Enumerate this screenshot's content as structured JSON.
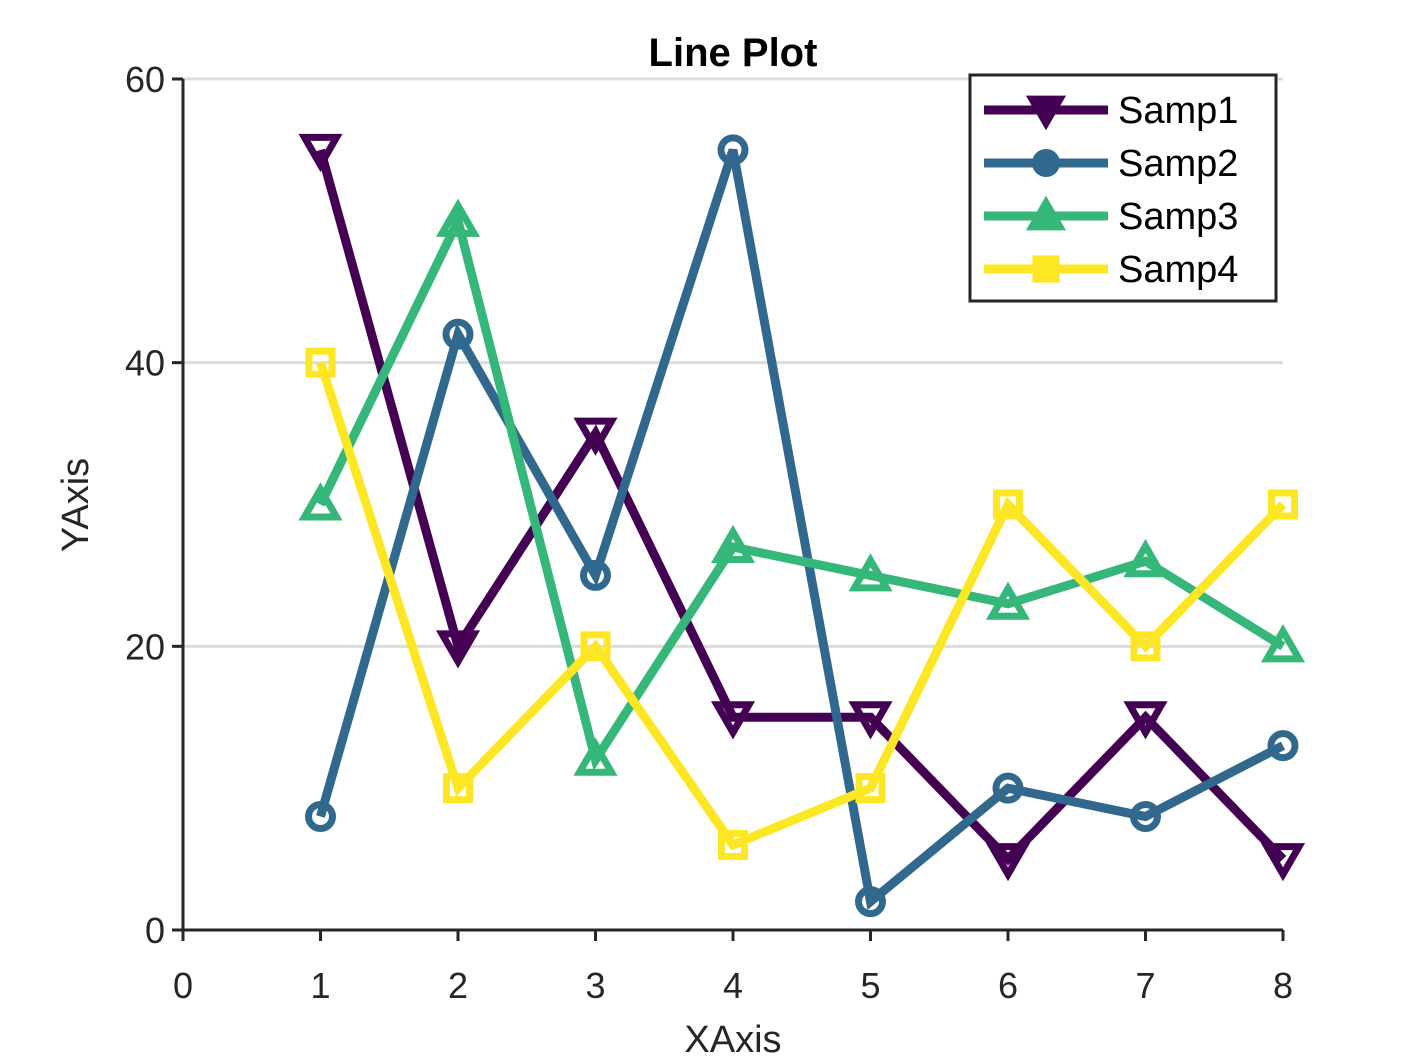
{
  "chart_data": {
    "type": "line",
    "title": "Line Plot",
    "xlabel": "XAxis",
    "ylabel": "YAxis",
    "xlim": [
      0,
      8
    ],
    "ylim": [
      0,
      60
    ],
    "xticks": [
      0,
      1,
      2,
      3,
      4,
      5,
      6,
      7,
      8
    ],
    "yticks": [
      0,
      20,
      40,
      60
    ],
    "grid": "horizontal",
    "legend_position": "top-right",
    "x": [
      1,
      2,
      3,
      4,
      5,
      6,
      7,
      8
    ],
    "series": [
      {
        "name": "Samp1",
        "marker": "triangle-down",
        "color": "#440154",
        "values": [
          55,
          20,
          35,
          15,
          15,
          5,
          15,
          5
        ]
      },
      {
        "name": "Samp2",
        "marker": "circle",
        "color": "#31688e",
        "values": [
          8,
          42,
          25,
          55,
          2,
          10,
          8,
          13
        ]
      },
      {
        "name": "Samp3",
        "marker": "triangle-up",
        "color": "#35b779",
        "values": [
          30,
          50,
          12,
          27,
          25,
          23,
          26,
          20
        ]
      },
      {
        "name": "Samp4",
        "marker": "square",
        "color": "#fde725",
        "values": [
          40,
          10,
          20,
          6,
          10,
          30,
          20,
          30
        ]
      }
    ]
  }
}
